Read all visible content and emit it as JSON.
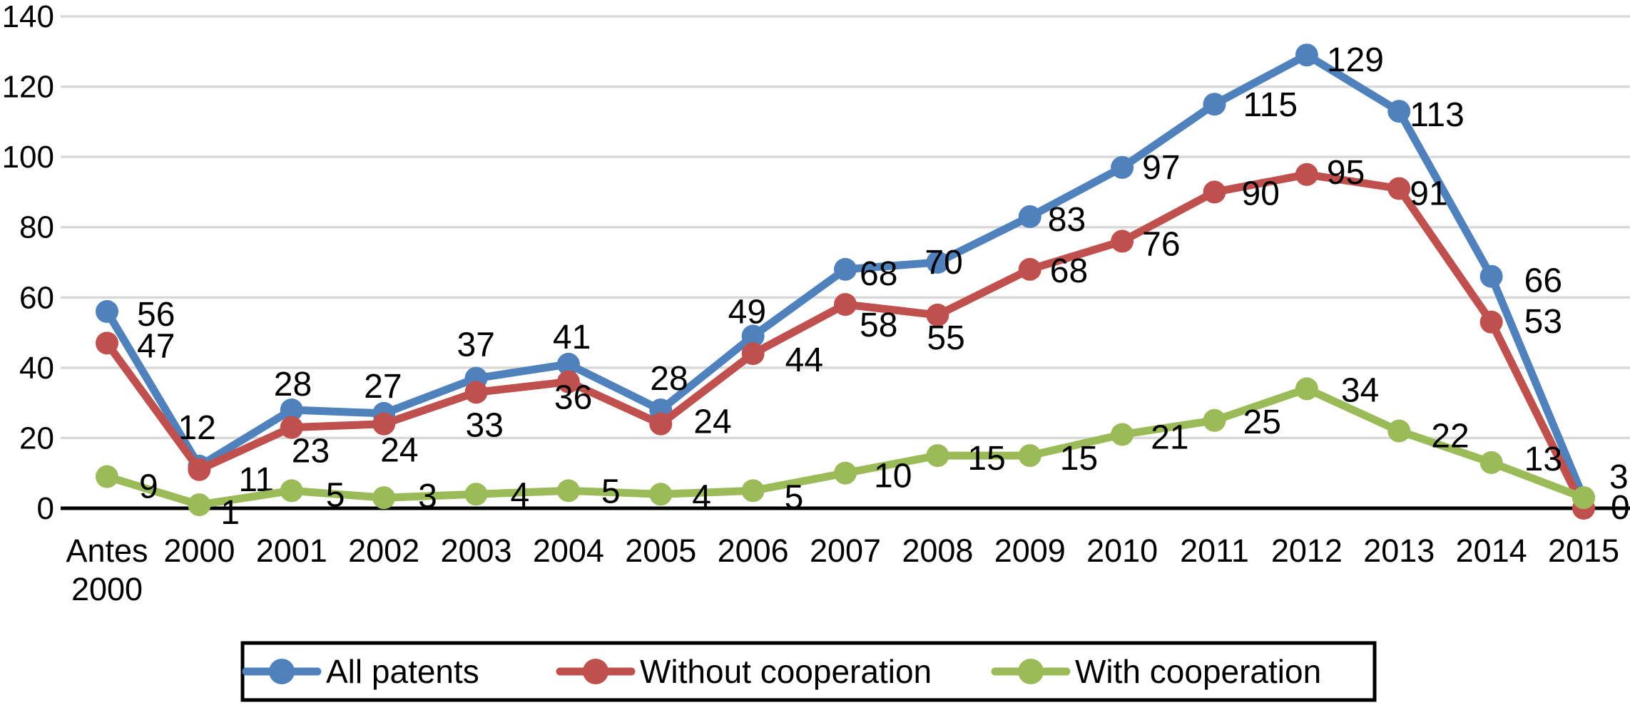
{
  "chart_data": {
    "type": "line",
    "categories": [
      "Antes 2000",
      "2000",
      "2001",
      "2002",
      "2003",
      "2004",
      "2005",
      "2006",
      "2007",
      "2008",
      "2009",
      "2010",
      "2011",
      "2012",
      "2013",
      "2014",
      "2015"
    ],
    "series": [
      {
        "name": "All patents",
        "color": "#4F81BD",
        "values": [
          56,
          12,
          28,
          27,
          37,
          41,
          28,
          49,
          68,
          70,
          83,
          97,
          115,
          129,
          113,
          66,
          3
        ]
      },
      {
        "name": "Without cooperation",
        "color": "#C0504D",
        "values": [
          47,
          11,
          23,
          24,
          33,
          36,
          24,
          44,
          58,
          55,
          68,
          76,
          90,
          95,
          91,
          53,
          0
        ]
      },
      {
        "name": "With cooperation",
        "color": "#9BBB59",
        "values": [
          9,
          1,
          5,
          3,
          4,
          5,
          4,
          5,
          10,
          15,
          15,
          21,
          25,
          34,
          22,
          13,
          3
        ]
      }
    ],
    "title": "",
    "xlabel": "",
    "ylabel": "",
    "ylim": [
      0,
      140
    ],
    "y_ticks": [
      0,
      20,
      40,
      60,
      80,
      100,
      120,
      140
    ],
    "grid": true,
    "gridline_color": "#D9D9D9",
    "axis_color": "#000000",
    "label_color": "#000000",
    "data_labels": true,
    "legend_position": "bottom",
    "legend_border_color": "#000000",
    "legend_labels": [
      "All patents",
      "Without cooperation",
      "With cooperation"
    ]
  }
}
